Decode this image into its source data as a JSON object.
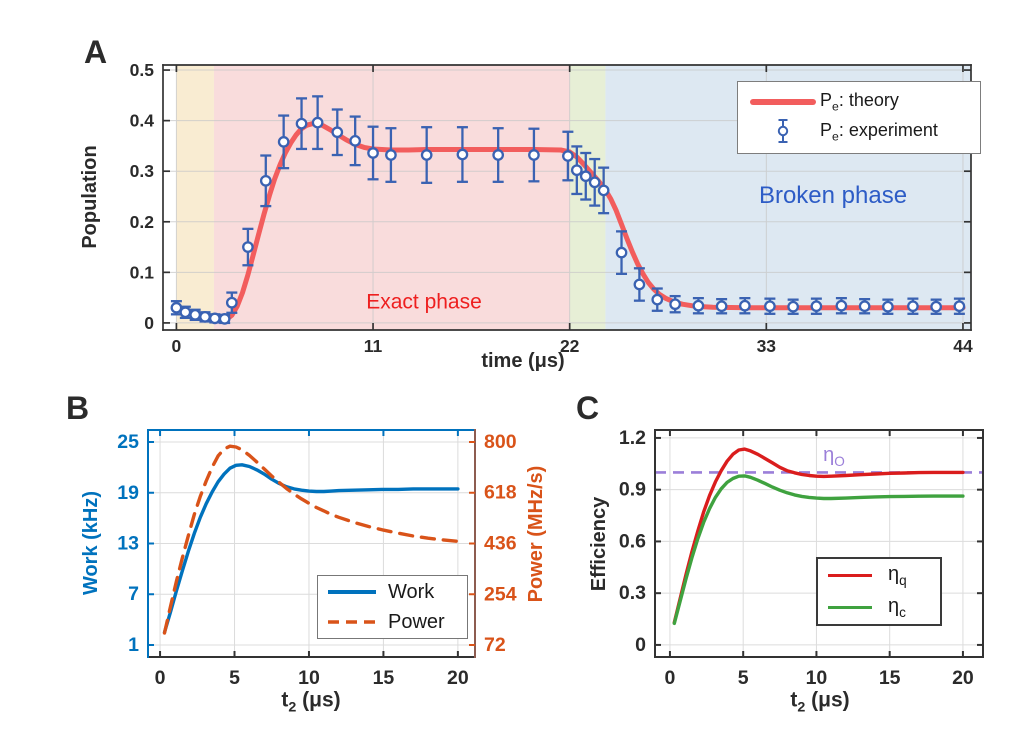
{
  "chart_data": [
    {
      "panel_letter": "A",
      "type": "line",
      "title": "",
      "xlabel": "time (μs)",
      "ylabel": "Population",
      "xlim": [
        -0.75,
        44.45
      ],
      "ylim": [
        -0.014,
        0.51
      ],
      "xticks": [
        0,
        11,
        22,
        33,
        44
      ],
      "xtick_labels": [
        "0",
        "11",
        "22",
        "33",
        "44"
      ],
      "yticks": [
        0,
        0.1,
        0.2,
        0.3,
        0.4,
        0.5
      ],
      "ytick_labels": [
        "0",
        "0.1",
        "0.2",
        "0.3",
        "0.4",
        "0.5"
      ],
      "grid": true,
      "grid_color": "#c9c9c9",
      "legend_position": "top-right",
      "regions": [
        {
          "label": "",
          "xrange": [
            0,
            2.1
          ],
          "color": "#f9ecd2",
          "label_color": ""
        },
        {
          "label": "Exact phase",
          "xrange": [
            2.1,
            22
          ],
          "color": "#f9dcdc",
          "label_color": "#ee1f1f"
        },
        {
          "label": "",
          "xrange": [
            22,
            24
          ],
          "color": "#e7efd6",
          "label_color": ""
        },
        {
          "label": "Broken phase",
          "xrange": [
            24,
            44.45
          ],
          "color": "#dde8f2",
          "label_color": "#2d5cc6"
        }
      ],
      "series": [
        {
          "name": "Pe: theory",
          "label_parts": {
            "main": "P",
            "sub": "e",
            "rest": ": theory"
          },
          "type": "line",
          "color": "#f25d5d",
          "width": 5,
          "x": [
            0,
            0.5,
            1,
            1.5,
            2,
            2.4,
            2.8,
            3.1,
            3.4,
            3.7,
            4,
            4.3,
            4.6,
            4.9,
            5.2,
            5.5,
            5.8,
            6.1,
            6.4,
            6.7,
            7,
            7.3,
            7.6,
            7.9,
            8.2,
            8.6,
            9,
            9.5,
            10,
            10.5,
            11,
            11.5,
            12,
            13,
            14,
            16,
            18,
            20,
            21.5,
            22,
            22.4,
            22.8,
            23.2,
            23.6,
            24,
            24.3,
            24.6,
            24.9,
            25.2,
            25.5,
            25.8,
            26.1,
            26.4,
            26.7,
            27,
            27.4,
            27.8,
            28.3,
            29,
            30,
            32,
            36,
            40,
            44
          ],
          "y": [
            0.03,
            0.024,
            0.018,
            0.012,
            0.008,
            0.006,
            0.007,
            0.015,
            0.033,
            0.06,
            0.095,
            0.135,
            0.175,
            0.215,
            0.252,
            0.285,
            0.313,
            0.337,
            0.356,
            0.372,
            0.384,
            0.391,
            0.394,
            0.394,
            0.39,
            0.382,
            0.373,
            0.362,
            0.353,
            0.347,
            0.344,
            0.343,
            0.342,
            0.342,
            0.343,
            0.343,
            0.343,
            0.343,
            0.342,
            0.338,
            0.328,
            0.313,
            0.297,
            0.281,
            0.263,
            0.245,
            0.222,
            0.195,
            0.167,
            0.141,
            0.117,
            0.097,
            0.08,
            0.067,
            0.057,
            0.048,
            0.042,
            0.037,
            0.033,
            0.031,
            0.03,
            0.03,
            0.03,
            0.03
          ]
        },
        {
          "name": "Pe: experiment",
          "label_parts": {
            "main": "P",
            "sub": "e",
            "rest": ": experiment"
          },
          "type": "errorbar",
          "color": "#3a62b2",
          "x": [
            0,
            0.5,
            1.05,
            1.6,
            2.15,
            2.7,
            3.1,
            4,
            5,
            6,
            7,
            7.9,
            9,
            10,
            11,
            12,
            14,
            16,
            18,
            20,
            21.9,
            22.4,
            22.9,
            23.4,
            23.9,
            24.9,
            25.9,
            26.9,
            27.9,
            29.2,
            30.5,
            31.8,
            33.2,
            34.5,
            35.8,
            37.2,
            38.5,
            39.8,
            41.2,
            42.5,
            43.8
          ],
          "y": [
            0.03,
            0.021,
            0.016,
            0.012,
            0.009,
            0.008,
            0.04,
            0.15,
            0.281,
            0.358,
            0.394,
            0.396,
            0.377,
            0.36,
            0.336,
            0.332,
            0.332,
            0.333,
            0.332,
            0.332,
            0.33,
            0.302,
            0.29,
            0.278,
            0.262,
            0.139,
            0.076,
            0.046,
            0.037,
            0.034,
            0.033,
            0.034,
            0.033,
            0.032,
            0.033,
            0.034,
            0.033,
            0.032,
            0.033,
            0.032,
            0.033
          ],
          "yerr": [
            0.013,
            0.011,
            0.01,
            0.009,
            0.008,
            0.008,
            0.02,
            0.036,
            0.05,
            0.052,
            0.05,
            0.052,
            0.045,
            0.048,
            0.052,
            0.053,
            0.055,
            0.054,
            0.053,
            0.052,
            0.048,
            0.047,
            0.046,
            0.046,
            0.045,
            0.042,
            0.032,
            0.022,
            0.016,
            0.015,
            0.014,
            0.015,
            0.015,
            0.014,
            0.015,
            0.015,
            0.014,
            0.014,
            0.015,
            0.014,
            0.015
          ]
        }
      ]
    },
    {
      "panel_letter": "B",
      "type": "line",
      "title": "",
      "xlabel": "t2 (μs)",
      "xlabel_parts": {
        "main": "t",
        "sub": "2",
        "rest": " (μs)"
      },
      "ylabel_left": "Work (kHz)",
      "ylabel_right": "Power (MHz/s)",
      "xlim": [
        -0.81,
        21.15
      ],
      "ylim_left": [
        -0.42,
        26.42
      ],
      "ylim_right": [
        29,
        843
      ],
      "xticks": [
        0,
        5,
        10,
        15,
        20
      ],
      "xtick_labels": [
        "0",
        "5",
        "10",
        "15",
        "20"
      ],
      "yticks_left": [
        1,
        7,
        13,
        19,
        25
      ],
      "ytick_labels_left": [
        "1",
        "7",
        "13",
        "19",
        "25"
      ],
      "yticks_right": [
        72,
        254,
        436,
        618,
        800
      ],
      "ytick_labels_right": [
        "72",
        "254",
        "436",
        "618",
        "800"
      ],
      "grid": true,
      "grid_color": "#dcdcdc",
      "legend_position": "bottom-right",
      "axis_colors": {
        "left": "#0072bd",
        "right_spine": "#8d5c50",
        "right_text": "#d95319",
        "top": "#0072bd",
        "bottom": "#333333"
      },
      "series": [
        {
          "name": "Work",
          "axis": "left",
          "style": "solid",
          "color": "#0072bd",
          "width": 3.4,
          "x": [
            0.3,
            0.7,
            1.1,
            1.5,
            1.9,
            2.3,
            2.7,
            3.1,
            3.5,
            3.9,
            4.3,
            4.7,
            5.1,
            5.5,
            6,
            6.5,
            7,
            7.5,
            8,
            8.5,
            9,
            9.5,
            10,
            10.5,
            11,
            11.5,
            12,
            13,
            14,
            15,
            16,
            17,
            18,
            19,
            20
          ],
          "y": [
            2.5,
            4.9,
            7.4,
            9.8,
            12.1,
            14.2,
            16.1,
            17.7,
            19.1,
            20.3,
            21.2,
            21.9,
            22.25,
            22.3,
            22.1,
            21.7,
            21.2,
            20.6,
            20.1,
            19.7,
            19.45,
            19.3,
            19.2,
            19.15,
            19.15,
            19.2,
            19.25,
            19.3,
            19.35,
            19.4,
            19.4,
            19.45,
            19.45,
            19.45,
            19.45
          ]
        },
        {
          "name": "Power",
          "axis": "right",
          "style": "dashed",
          "dash": "13 9",
          "color": "#d95319",
          "width": 3.4,
          "x": [
            0.3,
            0.7,
            1.1,
            1.5,
            1.9,
            2.3,
            2.7,
            3.1,
            3.5,
            3.9,
            4.3,
            4.7,
            5.1,
            5.5,
            6,
            6.5,
            7,
            7.5,
            8,
            8.5,
            9,
            9.5,
            10,
            10.5,
            11,
            11.5,
            12,
            13,
            14,
            15,
            16,
            17,
            18,
            19,
            20
          ],
          "y": [
            115,
            210,
            300,
            385,
            465,
            540,
            605,
            660,
            710,
            750,
            775,
            785,
            782,
            772,
            752,
            728,
            703,
            678,
            655,
            633,
            613,
            596,
            580,
            565,
            553,
            540,
            530,
            512,
            497,
            484,
            473,
            463,
            455,
            449,
            444
          ]
        }
      ]
    },
    {
      "panel_letter": "C",
      "type": "line",
      "title": "",
      "xlabel": "t2 (μs)",
      "xlabel_parts": {
        "main": "t",
        "sub": "2",
        "rest": " (μs)"
      },
      "ylabel": "Efficiency",
      "xlim": [
        -1.02,
        21.37
      ],
      "ylim": [
        -0.07,
        1.246
      ],
      "xticks": [
        0,
        5,
        10,
        15,
        20
      ],
      "xtick_labels": [
        "0",
        "5",
        "10",
        "15",
        "20"
      ],
      "yticks": [
        0,
        0.3,
        0.6,
        0.9,
        1.2
      ],
      "ytick_labels": [
        "0",
        "0.3",
        "0.6",
        "0.9",
        "1.2"
      ],
      "grid": true,
      "grid_color": "#dcdcdc",
      "legend_position": "bottom-right",
      "annotations": [
        {
          "type": "hline",
          "y": 1.0,
          "style": "dashed",
          "color": "#9b7fd9",
          "label": "ηO",
          "label_parts": {
            "main": "η",
            "sub": "O"
          }
        }
      ],
      "series": [
        {
          "name": "ηq",
          "label_parts": {
            "main": "η",
            "sub": "q"
          },
          "color": "#da1d1d",
          "width": 3.4,
          "x": [
            0.3,
            0.7,
            1.1,
            1.5,
            1.9,
            2.3,
            2.7,
            3.1,
            3.5,
            3.9,
            4.3,
            4.7,
            5.1,
            5.5,
            6,
            6.5,
            7,
            7.5,
            8,
            8.5,
            9,
            9.5,
            10,
            10.5,
            11,
            12,
            13,
            14,
            15,
            16,
            17,
            18,
            19,
            20
          ],
          "y": [
            0.13,
            0.27,
            0.41,
            0.54,
            0.66,
            0.77,
            0.865,
            0.945,
            1.01,
            1.065,
            1.105,
            1.13,
            1.135,
            1.125,
            1.105,
            1.08,
            1.055,
            1.03,
            1.01,
            0.998,
            0.988,
            0.982,
            0.978,
            0.977,
            0.978,
            0.982,
            0.987,
            0.991,
            0.995,
            0.997,
            0.999,
            1.0,
            1.0,
            1.0
          ]
        },
        {
          "name": "ηc",
          "label_parts": {
            "main": "η",
            "sub": "c"
          },
          "color": "#3fa23f",
          "width": 3.4,
          "x": [
            0.3,
            0.7,
            1.1,
            1.5,
            1.9,
            2.3,
            2.7,
            3.1,
            3.5,
            3.9,
            4.3,
            4.7,
            5.1,
            5.5,
            6,
            6.5,
            7,
            7.5,
            8,
            8.5,
            9,
            9.5,
            10,
            10.5,
            11,
            12,
            13,
            14,
            15,
            16,
            17,
            18,
            19,
            20
          ],
          "y": [
            0.125,
            0.255,
            0.385,
            0.505,
            0.615,
            0.71,
            0.79,
            0.855,
            0.905,
            0.942,
            0.965,
            0.978,
            0.98,
            0.972,
            0.955,
            0.935,
            0.915,
            0.897,
            0.882,
            0.87,
            0.861,
            0.855,
            0.851,
            0.849,
            0.849,
            0.851,
            0.855,
            0.858,
            0.86,
            0.861,
            0.862,
            0.863,
            0.863,
            0.863
          ]
        }
      ]
    }
  ]
}
